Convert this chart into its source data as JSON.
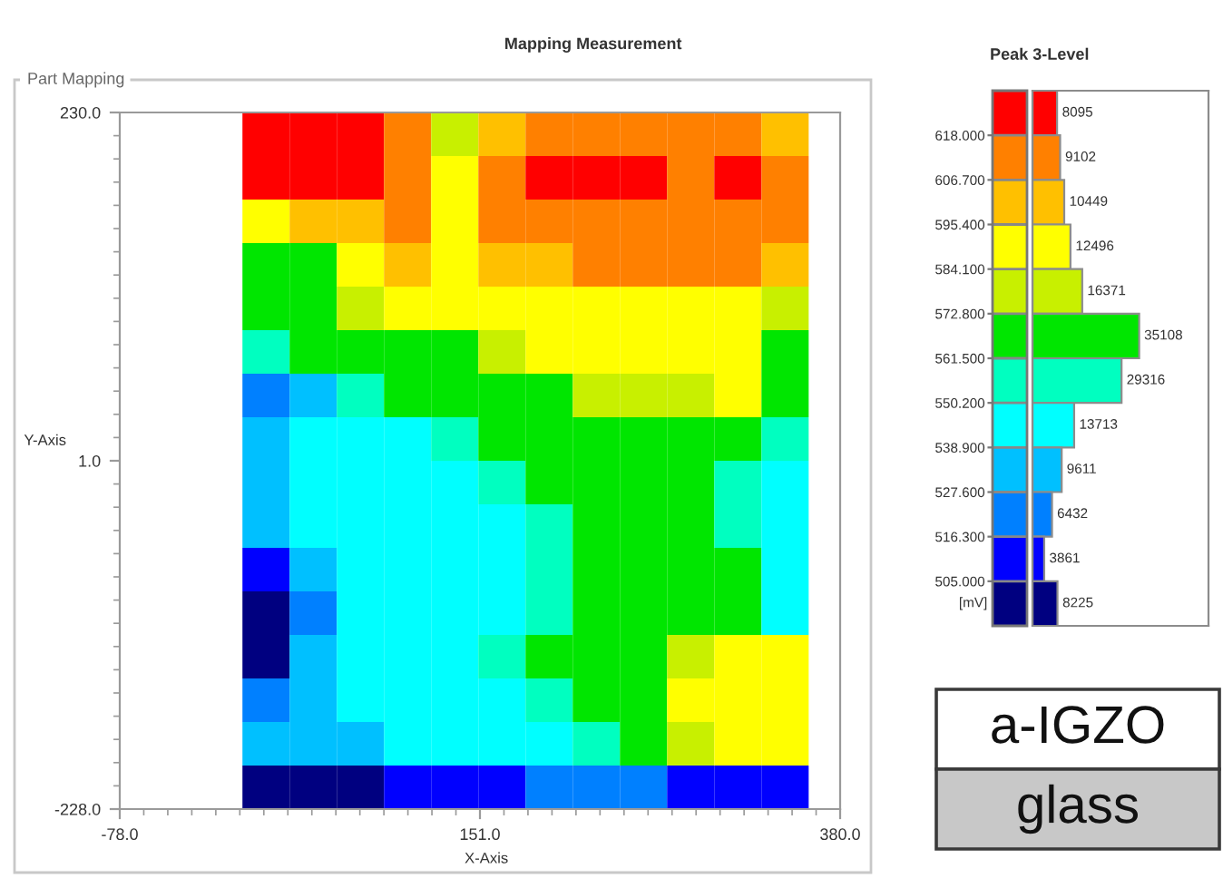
{
  "chart_data": [
    {
      "type": "heatmap",
      "title": "Mapping Measurement",
      "xlabel": "X-Axis",
      "ylabel": "Y-Axis",
      "clabel": "[mV]",
      "annotations": [
        "Part Mapping"
      ],
      "x": [
        15,
        45,
        75,
        105,
        135,
        165,
        195,
        225,
        255,
        285,
        315,
        345
      ],
      "cells": [
        [
          624,
          624,
          624,
          612,
          578,
          601,
          612,
          612,
          612,
          612,
          612,
          601
        ],
        [
          624,
          624,
          624,
          612,
          590,
          612,
          624,
          624,
          624,
          612,
          624,
          612
        ],
        [
          590,
          601,
          601,
          612,
          590,
          612,
          612,
          612,
          612,
          612,
          612,
          612
        ],
        [
          567,
          567,
          590,
          601,
          590,
          601,
          601,
          612,
          612,
          612,
          612,
          601
        ],
        [
          567,
          567,
          578,
          590,
          590,
          590,
          590,
          590,
          590,
          590,
          590,
          578
        ],
        [
          556,
          567,
          567,
          567,
          567,
          578,
          590,
          590,
          590,
          590,
          590,
          567
        ],
        [
          522,
          533,
          556,
          567,
          567,
          567,
          567,
          578,
          578,
          578,
          590,
          567
        ],
        [
          533,
          544,
          544,
          544,
          556,
          567,
          567,
          567,
          567,
          567,
          567,
          556
        ],
        [
          533,
          544,
          544,
          544,
          544,
          556,
          567,
          567,
          567,
          567,
          556,
          544
        ],
        [
          533,
          544,
          544,
          544,
          544,
          544,
          556,
          567,
          567,
          567,
          556,
          544
        ],
        [
          511,
          533,
          544,
          544,
          544,
          544,
          556,
          567,
          567,
          567,
          567,
          544
        ],
        [
          499,
          522,
          544,
          544,
          544,
          544,
          556,
          567,
          567,
          567,
          567,
          544
        ],
        [
          499,
          533,
          544,
          544,
          544,
          556,
          567,
          567,
          567,
          578,
          590,
          590
        ],
        [
          522,
          533,
          544,
          544,
          544,
          544,
          556,
          567,
          567,
          590,
          590,
          590
        ],
        [
          533,
          533,
          533,
          544,
          544,
          544,
          544,
          556,
          567,
          578,
          590,
          590
        ],
        [
          499,
          499,
          499,
          511,
          511,
          511,
          522,
          522,
          522,
          511,
          511,
          511
        ]
      ],
      "colors": [
        "#000080",
        "#0000ff",
        "#0080ff",
        "#00c0ff",
        "#00ffff",
        "#00ffc0",
        "#00e600",
        "#c8f000",
        "#ffff00",
        "#ffc000",
        "#ff8000",
        "#ff0000"
      ],
      "xlim": [
        -78,
        380
      ],
      "xticks": [
        {
          "value": -78,
          "label": "-78.0"
        },
        {
          "value": 151,
          "label": "151.0"
        },
        {
          "value": 380,
          "label": "380.0"
        }
      ],
      "ylim": [
        -228,
        230
      ],
      "yticks": [
        {
          "value": 230,
          "label": "230.0"
        },
        {
          "value": 1,
          "label": "1.0"
        },
        {
          "value": -228,
          "label": "-228.0"
        }
      ],
      "clim": [
        493.7,
        629.3
      ],
      "cticks": [
        {
          "value": 505,
          "label": "505.000"
        },
        {
          "value": 516.3,
          "label": "516.300"
        },
        {
          "value": 527.6,
          "label": "527.600"
        },
        {
          "value": 538.9,
          "label": "538.900"
        },
        {
          "value": 550.2,
          "label": "550.200"
        },
        {
          "value": 561.5,
          "label": "561.500"
        },
        {
          "value": 572.8,
          "label": "572.800"
        },
        {
          "value": 584.1,
          "label": "584.100"
        },
        {
          "value": 595.4,
          "label": "595.400"
        },
        {
          "value": 606.7,
          "label": "606.700"
        },
        {
          "value": 618,
          "label": "618.000"
        }
      ]
    },
    {
      "type": "bar",
      "orientation": "horizontal",
      "title": "Peak 3-Level",
      "categories": [
        null,
        null,
        null,
        null,
        null,
        null,
        null,
        null,
        null,
        null,
        null,
        null
      ],
      "values": [
        8095,
        9102,
        10449,
        12496,
        16371,
        35108,
        29316,
        13713,
        9611,
        6432,
        3861,
        8225
      ],
      "colors": [
        "#ff0000",
        "#ff8000",
        "#ffc000",
        "#ffff00",
        "#c8f000",
        "#00e600",
        "#00ffc0",
        "#00ffff",
        "#00c0ff",
        "#0080ff",
        "#0000ff",
        "#000080"
      ],
      "data_labels": true,
      "tick_labels": false
    },
    {
      "type": "other",
      "annotations": [
        "a-IGZO",
        "glass"
      ]
    }
  ]
}
